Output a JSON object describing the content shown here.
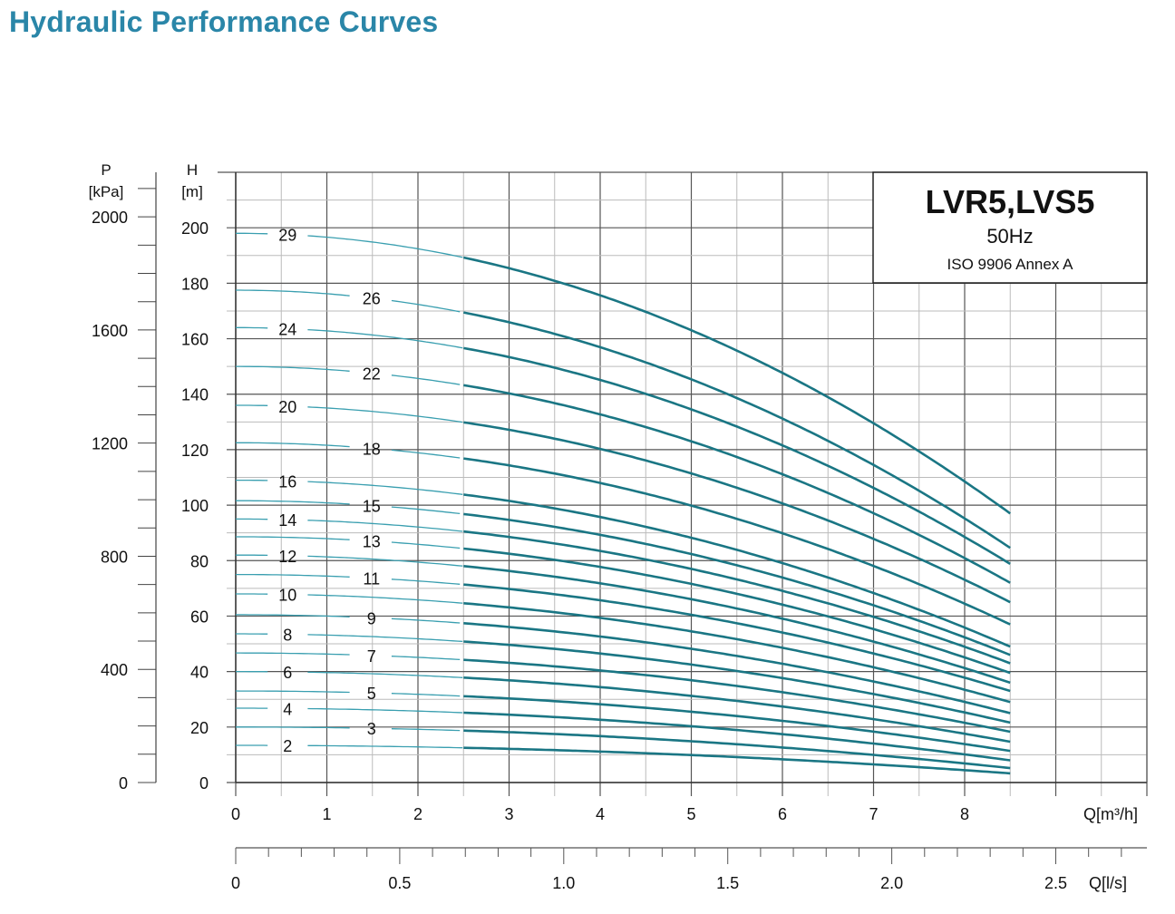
{
  "page_title": "Hydraulic Performance Curves",
  "chart_data": {
    "type": "line",
    "title": "LVR5,LVS5",
    "subtitle": "50Hz",
    "standard": "ISO 9906 Annex A",
    "xlabel": "Q[m³/h]",
    "xlabel_secondary": "Q[l/s]",
    "ylabel": "H",
    "ylabel_unit": "[m]",
    "ylabel_secondary": "P",
    "ylabel_secondary_unit": "[kPa]",
    "xlim": [
      0,
      10
    ],
    "ylim": [
      0,
      220
    ],
    "x_ticks": [
      "0",
      "1",
      "2",
      "3",
      "4",
      "5",
      "6",
      "7",
      "8"
    ],
    "x2_ticks": [
      "0",
      "0.5",
      "1.0",
      "1.5",
      "2.0",
      "2.5"
    ],
    "y_ticks": [
      "0",
      "20",
      "40",
      "60",
      "80",
      "100",
      "120",
      "140",
      "160",
      "180",
      "200"
    ],
    "y2_ticks": [
      "0",
      "400",
      "800",
      "1200",
      "1600",
      "2000"
    ],
    "grid": true,
    "curve_q_range": [
      0,
      8.5
    ],
    "series": [
      {
        "name": "29",
        "h_at_q0": 198,
        "h_at_q8_5": 97,
        "label_q": 0.57
      },
      {
        "name": "26",
        "h_at_q0": 177.5,
        "h_at_q8_5": 84.6,
        "label_q": 1.49
      },
      {
        "name": "24",
        "h_at_q0": 164,
        "h_at_q8_5": 78.8,
        "label_q": 0.57
      },
      {
        "name": "22",
        "h_at_q0": 150,
        "h_at_q8_5": 72,
        "label_q": 1.49
      },
      {
        "name": "20",
        "h_at_q0": 136,
        "h_at_q8_5": 65,
        "label_q": 0.57
      },
      {
        "name": "18",
        "h_at_q0": 122.5,
        "h_at_q8_5": 57,
        "label_q": 1.49
      },
      {
        "name": "16",
        "h_at_q0": 109,
        "h_at_q8_5": 49,
        "label_q": 0.57
      },
      {
        "name": "15",
        "h_at_q0": 101.6,
        "h_at_q8_5": 46,
        "label_q": 1.49
      },
      {
        "name": "14",
        "h_at_q0": 95,
        "h_at_q8_5": 43,
        "label_q": 0.57
      },
      {
        "name": "13",
        "h_at_q0": 88.6,
        "h_at_q8_5": 39.5,
        "label_q": 1.49
      },
      {
        "name": "12",
        "h_at_q0": 82,
        "h_at_q8_5": 36,
        "label_q": 0.57
      },
      {
        "name": "11",
        "h_at_q0": 75,
        "h_at_q8_5": 33,
        "label_q": 1.49
      },
      {
        "name": "10",
        "h_at_q0": 68,
        "h_at_q8_5": 29,
        "label_q": 0.57
      },
      {
        "name": "9",
        "h_at_q0": 60.5,
        "h_at_q8_5": 25,
        "label_q": 1.49
      },
      {
        "name": "8",
        "h_at_q0": 53.6,
        "h_at_q8_5": 21.6,
        "label_q": 0.57
      },
      {
        "name": "7",
        "h_at_q0": 46.7,
        "h_at_q8_5": 18.3,
        "label_q": 1.49
      },
      {
        "name": "6",
        "h_at_q0": 40,
        "h_at_q8_5": 14.7,
        "label_q": 0.57
      },
      {
        "name": "5",
        "h_at_q0": 33,
        "h_at_q8_5": 11.4,
        "label_q": 1.49
      },
      {
        "name": "4",
        "h_at_q0": 26.8,
        "h_at_q8_5": 8,
        "label_q": 0.57
      },
      {
        "name": "3",
        "h_at_q0": 20,
        "h_at_q8_5": 5.2,
        "label_q": 1.49
      },
      {
        "name": "2",
        "h_at_q0": 13.4,
        "h_at_q8_5": 3.3,
        "label_q": 0.57
      }
    ],
    "colors": {
      "curve": "#1a7684",
      "curve_thin": "#3a9fb0",
      "grid_major": "#555555",
      "grid_minor": "#bbbbbb"
    }
  }
}
